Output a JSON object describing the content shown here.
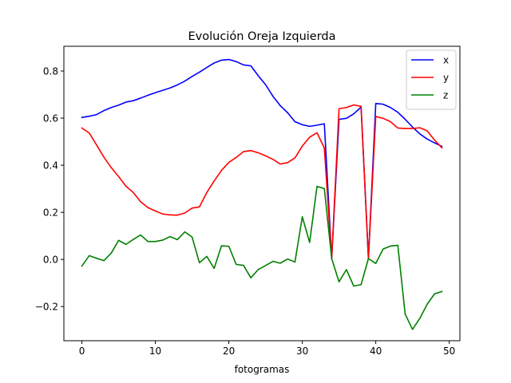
{
  "chart_data": {
    "type": "line",
    "title": "Evolución Oreja Izquierda",
    "xlabel": "fotogramas",
    "ylabel": "",
    "xlim": [
      -2.45,
      51.45
    ],
    "ylim": [
      -0.345,
      0.905
    ],
    "xticks": [
      0,
      10,
      20,
      30,
      40,
      50
    ],
    "xtick_labels": [
      "0",
      "10",
      "20",
      "30",
      "40",
      "50"
    ],
    "yticks": [
      -0.2,
      0.0,
      0.2,
      0.4,
      0.6,
      0.8
    ],
    "ytick_labels": [
      "−0.2",
      "0.0",
      "0.2",
      "0.4",
      "0.6",
      "0.8"
    ],
    "legend_position": "top-right",
    "grid": false,
    "x": [
      0,
      1,
      2,
      3,
      4,
      5,
      6,
      7,
      8,
      9,
      10,
      11,
      12,
      13,
      14,
      15,
      16,
      17,
      18,
      19,
      20,
      21,
      22,
      23,
      24,
      25,
      26,
      27,
      28,
      29,
      30,
      31,
      32,
      33,
      34,
      35,
      36,
      37,
      38,
      39,
      40,
      41,
      42,
      43,
      44,
      45,
      46,
      47,
      48,
      49
    ],
    "series": [
      {
        "name": "x",
        "color": "#0000ff",
        "values": [
          0.603,
          0.608,
          0.615,
          0.632,
          0.645,
          0.655,
          0.668,
          0.674,
          0.685,
          0.697,
          0.708,
          0.718,
          0.728,
          0.741,
          0.757,
          0.777,
          0.795,
          0.815,
          0.834,
          0.846,
          0.849,
          0.84,
          0.826,
          0.822,
          0.78,
          0.742,
          0.693,
          0.653,
          0.623,
          0.585,
          0.572,
          0.565,
          0.57,
          0.576,
          0.004,
          0.595,
          0.599,
          0.618,
          0.647,
          0.004,
          0.662,
          0.659,
          0.645,
          0.625,
          0.595,
          0.562,
          0.533,
          0.511,
          0.495,
          0.48
        ]
      },
      {
        "name": "y",
        "color": "#ff0000",
        "values": [
          0.558,
          0.537,
          0.486,
          0.434,
          0.39,
          0.352,
          0.311,
          0.284,
          0.245,
          0.22,
          0.206,
          0.193,
          0.189,
          0.188,
          0.197,
          0.218,
          0.223,
          0.284,
          0.333,
          0.378,
          0.412,
          0.433,
          0.458,
          0.462,
          0.453,
          0.44,
          0.425,
          0.405,
          0.411,
          0.431,
          0.481,
          0.519,
          0.538,
          0.473,
          0.004,
          0.64,
          0.645,
          0.656,
          0.65,
          0.004,
          0.607,
          0.599,
          0.585,
          0.558,
          0.556,
          0.556,
          0.559,
          0.546,
          0.507,
          0.474
        ]
      },
      {
        "name": "z",
        "color": "#008000",
        "values": [
          -0.028,
          0.016,
          0.005,
          -0.005,
          0.027,
          0.081,
          0.064,
          0.085,
          0.104,
          0.076,
          0.076,
          0.082,
          0.097,
          0.084,
          0.117,
          0.095,
          -0.014,
          0.013,
          -0.038,
          0.058,
          0.056,
          -0.021,
          -0.025,
          -0.078,
          -0.043,
          -0.026,
          -0.008,
          -0.016,
          0.002,
          -0.011,
          0.181,
          0.072,
          0.31,
          0.301,
          0.004,
          -0.095,
          -0.043,
          -0.113,
          -0.107,
          0.004,
          -0.017,
          0.044,
          0.057,
          0.06,
          -0.232,
          -0.297,
          -0.25,
          -0.19,
          -0.146,
          -0.136
        ]
      }
    ]
  }
}
